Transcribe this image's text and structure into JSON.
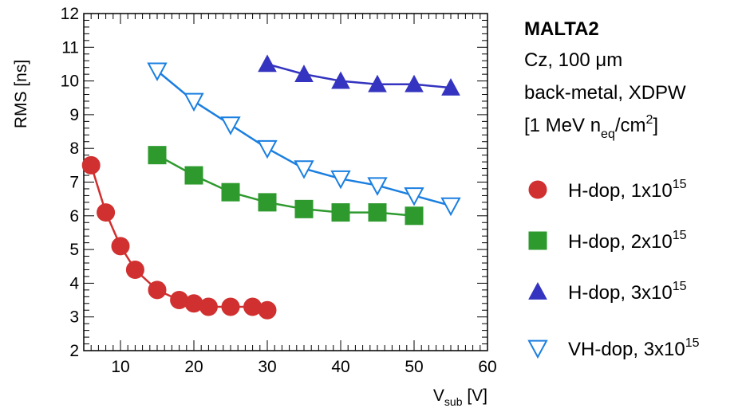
{
  "chart_data": {
    "type": "scatter",
    "xlabel": {
      "main": "V",
      "sub": "sub",
      "unit": " [V]"
    },
    "ylabel": "RMS [ns]",
    "xlim": [
      5,
      60
    ],
    "ylim": [
      2,
      12
    ],
    "x_ticks": [
      "10",
      "20",
      "30",
      "40",
      "50",
      "60"
    ],
    "y_ticks": [
      "2",
      "3",
      "4",
      "5",
      "6",
      "7",
      "8",
      "9",
      "10",
      "11",
      "12"
    ],
    "grid": false,
    "legend_placement": "right",
    "annotations": [
      "MALTA2",
      "Cz, 100 μm",
      "back-metal, XDPW"
    ],
    "fluence_label": {
      "pre": "[1 MeV n",
      "sub": "eq",
      "mid": "/cm",
      "sup": "2",
      "post": "]"
    },
    "series": [
      {
        "name": "H-dop, 1x10",
        "exponent": "15",
        "marker": "circle",
        "filled": true,
        "color": "#d0302f",
        "x": [
          6,
          8,
          10,
          12,
          15,
          18,
          20,
          22,
          25,
          28,
          30
        ],
        "y": [
          7.5,
          6.1,
          5.1,
          4.4,
          3.8,
          3.5,
          3.4,
          3.3,
          3.3,
          3.3,
          3.2
        ]
      },
      {
        "name": "H-dop, 2x10",
        "exponent": "15",
        "marker": "square",
        "filled": true,
        "color": "#2e9a2e",
        "x": [
          15,
          20,
          25,
          30,
          35,
          40,
          45,
          50
        ],
        "y": [
          7.8,
          7.2,
          6.7,
          6.4,
          6.2,
          6.1,
          6.1,
          6.0
        ]
      },
      {
        "name": "H-dop, 3x10",
        "exponent": "15",
        "marker": "triangle-up",
        "filled": true,
        "color": "#3434c0",
        "x": [
          30,
          35,
          40,
          45,
          50,
          55
        ],
        "y": [
          10.5,
          10.2,
          10.0,
          9.9,
          9.9,
          9.8
        ]
      },
      {
        "name": "VH-dop, 3x10",
        "exponent": "15",
        "marker": "triangle-down",
        "filled": false,
        "color": "#1a7fe0",
        "x": [
          15,
          20,
          25,
          30,
          35,
          40,
          45,
          50,
          55
        ],
        "y": [
          10.3,
          9.4,
          8.7,
          8.0,
          7.4,
          7.1,
          6.9,
          6.6,
          6.3
        ]
      }
    ]
  }
}
